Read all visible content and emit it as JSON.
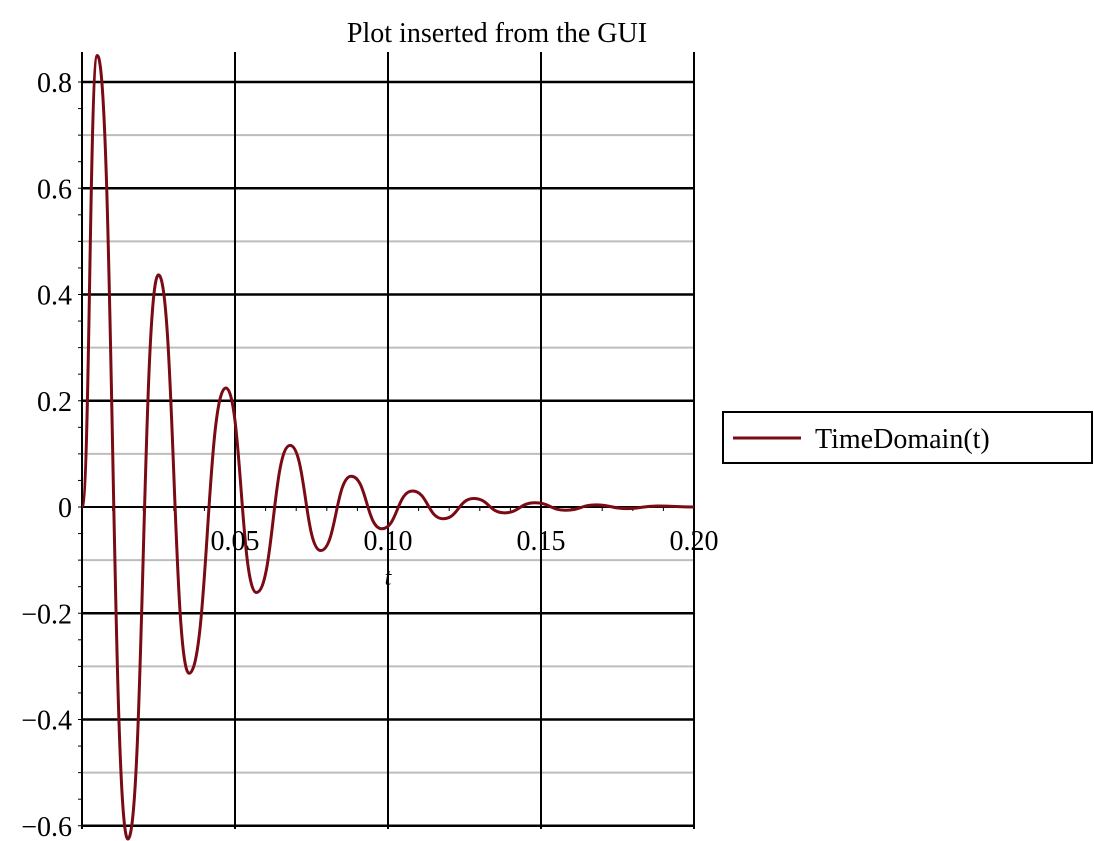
{
  "chart_data": {
    "type": "line",
    "title": "Plot inserted from the GUI",
    "xlabel": "t",
    "ylabel": "",
    "xlim": [
      0,
      0.2
    ],
    "ylim": [
      -0.6,
      0.85
    ],
    "x_ticks": [
      {
        "value": 0.05,
        "label": "0.05"
      },
      {
        "value": 0.1,
        "label": "0.10"
      },
      {
        "value": 0.15,
        "label": "0.15"
      },
      {
        "value": 0.2,
        "label": "0.20"
      }
    ],
    "y_ticks": [
      {
        "value": 0.8,
        "label": "0.8"
      },
      {
        "value": 0.6,
        "label": "0.6"
      },
      {
        "value": 0.4,
        "label": "0.4"
      },
      {
        "value": 0.2,
        "label": "0.2"
      },
      {
        "value": 0,
        "label": "0"
      },
      {
        "value": -0.2,
        "label": "−0.2"
      },
      {
        "value": -0.4,
        "label": "−0.4"
      },
      {
        "value": -0.6,
        "label": "−0.6"
      }
    ],
    "grid": true,
    "legend_position": "right",
    "series": [
      {
        "name": "TimeDomain(t)",
        "color": "#7a0a14",
        "points": [
          [
            0.0,
            0.0
          ],
          [
            0.005,
            0.85
          ],
          [
            0.015,
            -0.625
          ],
          [
            0.025,
            0.437
          ],
          [
            0.035,
            -0.313
          ],
          [
            0.047,
            0.224
          ],
          [
            0.057,
            -0.161
          ],
          [
            0.068,
            0.116
          ],
          [
            0.078,
            -0.082
          ],
          [
            0.088,
            0.058
          ],
          [
            0.098,
            -0.041
          ],
          [
            0.108,
            0.03
          ],
          [
            0.118,
            -0.022
          ],
          [
            0.128,
            0.016
          ],
          [
            0.138,
            -0.011
          ],
          [
            0.148,
            0.008
          ],
          [
            0.158,
            -0.006
          ],
          [
            0.168,
            0.004
          ],
          [
            0.178,
            -0.003
          ],
          [
            0.188,
            0.002
          ],
          [
            0.2,
            0.0
          ]
        ]
      }
    ]
  }
}
